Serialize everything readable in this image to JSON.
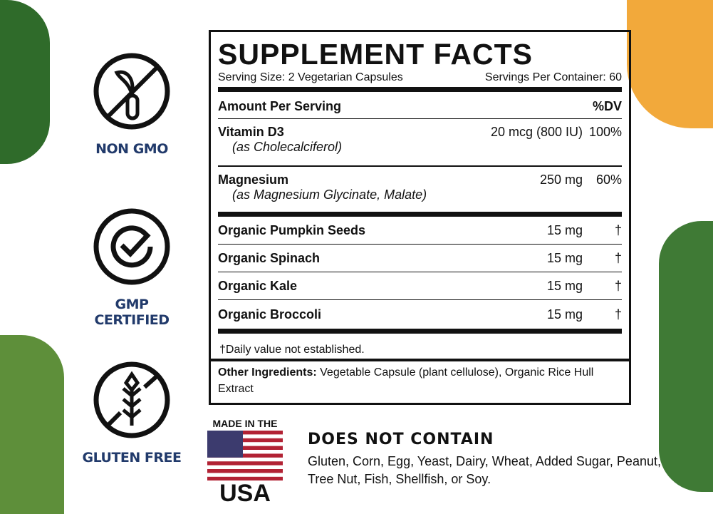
{
  "badges": [
    {
      "label": "NON GMO",
      "icon": "non-gmo-icon"
    },
    {
      "label": "GMP CERTIFIED",
      "icon": "checkmark-badge-icon"
    },
    {
      "label": "GLUTEN FREE",
      "icon": "no-wheat-icon"
    }
  ],
  "facts": {
    "title": "SUPPLEMENT FACTS",
    "serving_size": "Serving Size: 2 Vegetarian Capsules",
    "servings_per_container": "Servings Per Container: 60",
    "amount_header": "Amount Per Serving",
    "dv_header": "%DV",
    "main_rows": [
      {
        "name": "Vitamin D3",
        "sub": "(as Cholecalciferol)",
        "amount": "20 mcg (800 IU)",
        "dv": "100%"
      },
      {
        "name": "Magnesium",
        "sub": "(as Magnesium Glycinate, Malate)",
        "amount": "250 mg",
        "dv": "60%"
      }
    ],
    "blend_rows": [
      {
        "name": "Organic Pumpkin Seeds",
        "amount": "15 mg",
        "dv": "†"
      },
      {
        "name": "Organic Spinach",
        "amount": "15 mg",
        "dv": "†"
      },
      {
        "name": "Organic Kale",
        "amount": "15 mg",
        "dv": "†"
      },
      {
        "name": "Organic Broccoli",
        "amount": "15 mg",
        "dv": "†"
      }
    ],
    "footnote": "†Daily value not established.",
    "other_label": "Other Ingredients:",
    "other_text": " Vegetable Capsule (plant cellulose), Organic Rice Hull Extract"
  },
  "usa": {
    "top": "MADE IN THE",
    "bottom": "USA"
  },
  "does_not_contain": {
    "title": "DOES NOT CONTAIN",
    "text": "Gluten, Corn, Egg, Yeast, Dairy, Wheat, Added Sugar, Peanut, Tree Nut, Fish, Shellfish, or Soy."
  },
  "colors": {
    "navy": "#213a6b",
    "flag_red": "#b22234",
    "flag_blue": "#3c3b6e"
  }
}
